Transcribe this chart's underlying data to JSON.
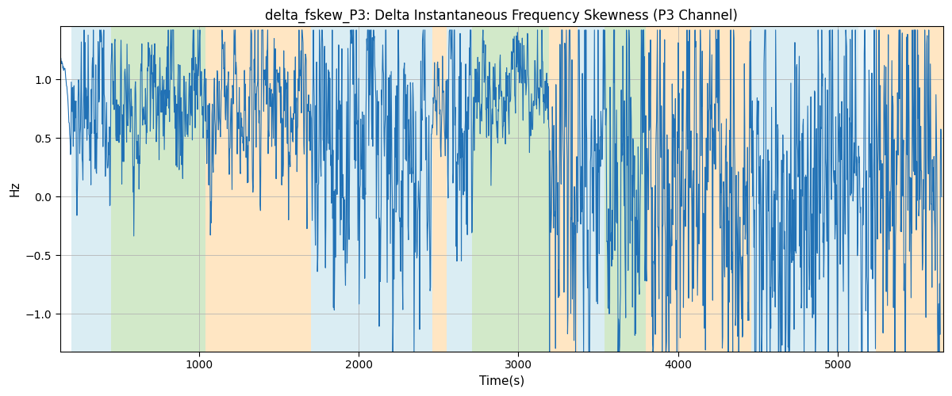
{
  "title": "delta_fskew_P3: Delta Instantaneous Frequency Skewness (P3 Channel)",
  "xlabel": "Time(s)",
  "ylabel": "Hz",
  "line_color": "#2171b5",
  "line_width": 0.8,
  "background_color": "#ffffff",
  "grid_color": "#b0b0b0",
  "ylim": [
    -1.32,
    1.45
  ],
  "xlim": [
    130,
    5660
  ],
  "xticks": [
    1000,
    2000,
    3000,
    4000,
    5000
  ],
  "yticks": [
    -1.0,
    -0.5,
    0.0,
    0.5,
    1.0
  ],
  "title_fontsize": 12,
  "axis_fontsize": 11,
  "tick_fontsize": 10,
  "bands": [
    {
      "start": 200,
      "end": 450,
      "color": "#add8e6",
      "alpha": 0.45
    },
    {
      "start": 450,
      "end": 1040,
      "color": "#90c978",
      "alpha": 0.4
    },
    {
      "start": 1040,
      "end": 1700,
      "color": "#ffc87a",
      "alpha": 0.45
    },
    {
      "start": 1700,
      "end": 2460,
      "color": "#add8e6",
      "alpha": 0.45
    },
    {
      "start": 2460,
      "end": 2550,
      "color": "#ffc87a",
      "alpha": 0.45
    },
    {
      "start": 2550,
      "end": 2710,
      "color": "#add8e6",
      "alpha": 0.45
    },
    {
      "start": 2710,
      "end": 3190,
      "color": "#90c978",
      "alpha": 0.4
    },
    {
      "start": 3190,
      "end": 3370,
      "color": "#ffc87a",
      "alpha": 0.45
    },
    {
      "start": 3370,
      "end": 3540,
      "color": "#add8e6",
      "alpha": 0.45
    },
    {
      "start": 3540,
      "end": 3800,
      "color": "#90c978",
      "alpha": 0.4
    },
    {
      "start": 3800,
      "end": 4460,
      "color": "#ffc87a",
      "alpha": 0.45
    },
    {
      "start": 4460,
      "end": 5130,
      "color": "#add8e6",
      "alpha": 0.45
    },
    {
      "start": 5130,
      "end": 5240,
      "color": "#add8e6",
      "alpha": 0.25
    },
    {
      "start": 5240,
      "end": 5660,
      "color": "#ffc87a",
      "alpha": 0.45
    }
  ],
  "figsize": [
    12.0,
    5.0
  ],
  "dpi": 100
}
